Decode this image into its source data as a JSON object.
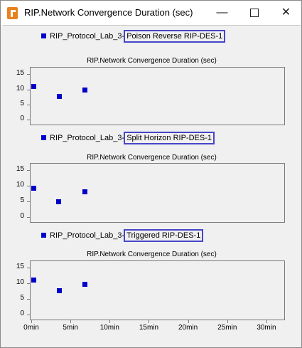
{
  "window": {
    "title": "RIP.Network Convergence Duration (sec)",
    "minimize_glyph": "—",
    "close_glyph": "✕"
  },
  "x_axis": {
    "ticks": [
      "0min",
      "5min",
      "10min",
      "15min",
      "20min",
      "25min",
      "30min"
    ]
  },
  "panels": [
    {
      "legend_prefix": "RIP_Protocol_Lab_3-",
      "legend_scenario": "Poison Reverse RIP-DES-1",
      "title": "RIP.Network Convergence Duration (sec)",
      "yticks": [
        "15",
        "10",
        "5",
        "0"
      ]
    },
    {
      "legend_prefix": "RIP_Protocol_Lab_3-",
      "legend_scenario": "Split Horizon RIP-DES-1",
      "title": "RIP.Network Convergence Duration (sec)",
      "yticks": [
        "15",
        "10",
        "5",
        "0"
      ]
    },
    {
      "legend_prefix": "RIP_Protocol_Lab_3-",
      "legend_scenario": "Triggered RIP-DES-1",
      "title": "RIP.Network Convergence Duration (sec)",
      "yticks": [
        "15",
        "10",
        "5",
        "0"
      ]
    }
  ],
  "colors": {
    "series": "#0000c8",
    "highlight_box": "#4646c8",
    "app_icon": "#e8821e"
  },
  "chart_data": [
    {
      "type": "scatter",
      "title": "RIP.Network Convergence Duration (sec)",
      "series": [
        {
          "name": "RIP_Protocol_Lab_3-Poison Reverse RIP-DES-1",
          "x": [
            0.3,
            3.6,
            6.8
          ],
          "y": [
            11,
            7.7,
            9.8
          ]
        }
      ],
      "xlim": [
        0,
        32
      ],
      "ylim": [
        0,
        16
      ],
      "x_unit": "min"
    },
    {
      "type": "scatter",
      "title": "RIP.Network Convergence Duration (sec)",
      "series": [
        {
          "name": "RIP_Protocol_Lab_3-Split Horizon RIP-DES-1",
          "x": [
            0.3,
            3.5,
            6.8
          ],
          "y": [
            9.2,
            5,
            8.1
          ]
        }
      ],
      "xlim": [
        0,
        32
      ],
      "ylim": [
        0,
        16
      ],
      "x_unit": "min"
    },
    {
      "type": "scatter",
      "title": "RIP.Network Convergence Duration (sec)",
      "series": [
        {
          "name": "RIP_Protocol_Lab_3-Triggered RIP-DES-1",
          "x": [
            0.3,
            3.6,
            6.8
          ],
          "y": [
            11,
            7.7,
            9.8
          ]
        }
      ],
      "xlim": [
        0,
        32
      ],
      "ylim": [
        0,
        16
      ],
      "x_unit": "min"
    }
  ]
}
